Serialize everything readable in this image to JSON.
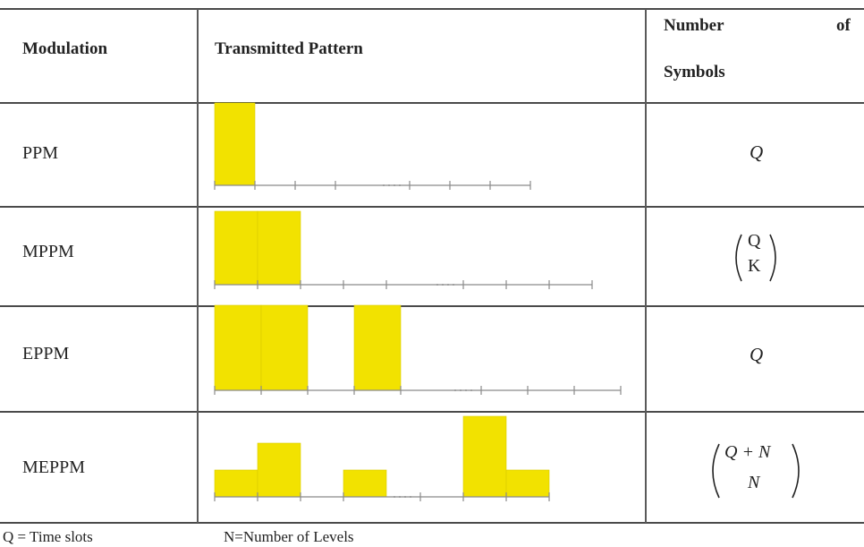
{
  "header": {
    "col1": "Modulation",
    "col2": "Transmitted Pattern",
    "col3_line1": "Number",
    "col3_of": "of",
    "col3_line2": "Symbols"
  },
  "rows": [
    {
      "name": "PPM",
      "symbols": "Q",
      "slot_levels": [
        1,
        0,
        0,
        0,
        "gap",
        0,
        0,
        0
      ]
    },
    {
      "name": "MPPM",
      "symbols_top": "Q",
      "symbols_bottom": "K",
      "slot_levels": [
        1,
        1,
        0,
        0,
        0,
        "gap",
        0,
        0,
        0
      ]
    },
    {
      "name": "EPPM",
      "symbols": "Q",
      "slot_levels": [
        1,
        1,
        0,
        1,
        0,
        "gap",
        0,
        0,
        0
      ]
    },
    {
      "name": "MEPPM",
      "symbols_top": "Q + N",
      "symbols_bottom": "N",
      "slot_levels": [
        1,
        2,
        0,
        1,
        "gap",
        0,
        3,
        1
      ]
    }
  ],
  "footer": {
    "q_def": "Q = Time slots",
    "n_def": "N=Number of Levels"
  },
  "colors": {
    "pulse": "#f2e200",
    "axis": "#8a8a8a"
  }
}
